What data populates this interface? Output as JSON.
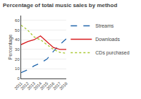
{
  "chart_data": {
    "type": "line",
    "title": "Percentage of total music sales by method",
    "y_label": "Percentage",
    "x": [
      2011,
      2012,
      2013,
      2014,
      2015,
      2016,
      2017,
      2018
    ],
    "series": [
      {
        "name": "Streams",
        "color": "#2166ac",
        "line_style": "dashed",
        "values": [
          6,
          9,
          13,
          16,
          20,
          28,
          35,
          41
        ]
      },
      {
        "name": "Downloads",
        "color": "#d7191c",
        "line_style": "solid",
        "values": [
          35,
          38,
          40,
          44,
          38,
          32,
          30,
          30
        ]
      },
      {
        "name": "CDs purchased",
        "color": "#a8c832",
        "line_style": "dotted",
        "values": [
          55,
          50,
          43,
          40,
          35,
          30,
          27,
          26
        ]
      }
    ],
    "xlim": [
      2011,
      2018
    ],
    "xticks": [
      2011,
      2012,
      2013,
      2014,
      2015,
      2016,
      2017,
      2018
    ],
    "ylim": [
      0,
      65
    ],
    "yticks": [
      0,
      10,
      20,
      30,
      40,
      50,
      60
    ],
    "grid": "y",
    "legend": "right"
  }
}
